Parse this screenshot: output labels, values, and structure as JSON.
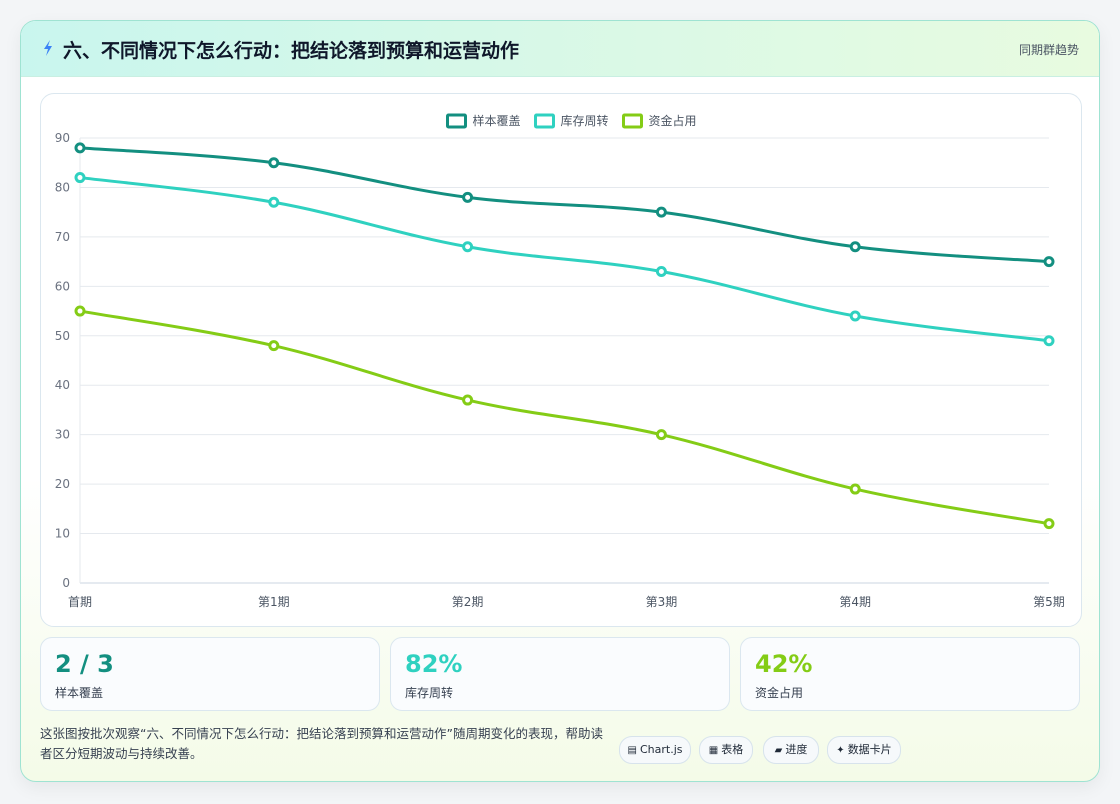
{
  "header": {
    "title": "六、不同情况下怎么行动：把结论落到预算和运营动作",
    "right_label": "同期群趋势"
  },
  "chart_data": {
    "type": "line",
    "categories": [
      "首期",
      "第1期",
      "第2期",
      "第3期",
      "第4期",
      "第5期"
    ],
    "series": [
      {
        "name": "样本覆盖",
        "values": [
          88,
          85,
          78,
          75,
          68,
          65
        ],
        "color": "#138f80"
      },
      {
        "name": "库存周转",
        "values": [
          82,
          77,
          68,
          63,
          54,
          49
        ],
        "color": "#2fd1c0"
      },
      {
        "name": "资金占用",
        "values": [
          55,
          48,
          37,
          30,
          19,
          12
        ],
        "color": "#84cc16"
      }
    ],
    "ylim": [
      0,
      90
    ],
    "yticks": [
      0,
      10,
      20,
      30,
      40,
      50,
      60,
      70,
      80,
      90
    ],
    "legend_position": "top-center",
    "grid": true
  },
  "stats": [
    {
      "value": "2 / 3",
      "label": "样本覆盖",
      "color": "#138f80"
    },
    {
      "value": "82%",
      "label": "库存周转",
      "color": "#2fd1c0"
    },
    {
      "value": "42%",
      "label": "资金占用",
      "color": "#84cc16"
    }
  ],
  "description": "这张图按批次观察“六、不同情况下怎么行动：把结论落到预算和运营动作”随周期变化的表现，帮助读者区分短期波动与持续改善。",
  "pills": [
    {
      "glyph": "▤",
      "label": "Chart.js"
    },
    {
      "glyph": "▦",
      "label": "表格"
    },
    {
      "glyph": "▰",
      "label": "进度"
    },
    {
      "glyph": "✦",
      "label": "数据卡片"
    }
  ]
}
